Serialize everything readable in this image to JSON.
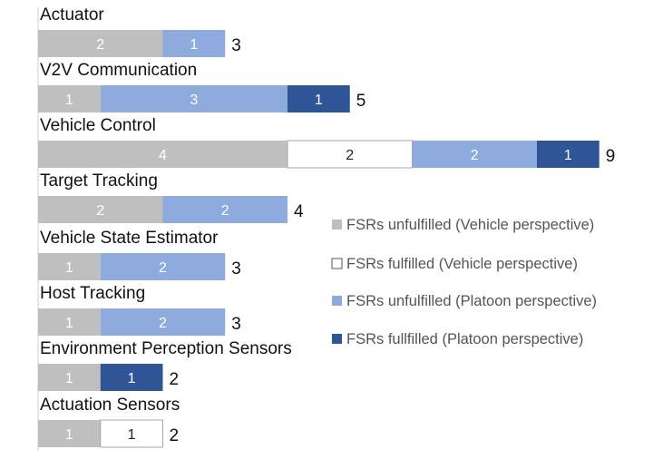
{
  "chart_data": {
    "type": "bar",
    "orientation": "horizontal",
    "stacked": true,
    "categories": [
      "Actuator",
      "V2V Communication",
      "Vehicle Control",
      "Target Tracking",
      "Vehicle State Estimator",
      "Host Tracking",
      "Environment  Perception Sensors",
      "Actuation Sensors"
    ],
    "series": [
      {
        "name": "FSRs unfulfilled (Vehicle perspective)",
        "color": "#bfbfbf",
        "label_color": "#ffffff",
        "values": [
          2,
          1,
          4,
          2,
          1,
          1,
          1,
          1
        ]
      },
      {
        "name": "FSRs  fulfilled (Vehicle perspective)",
        "color": "#ffffff",
        "label_color": "#222222",
        "values": [
          0,
          0,
          2,
          0,
          0,
          0,
          0,
          1
        ]
      },
      {
        "name": "FSRs unfulfilled (Platoon perspective)",
        "color": "#8faadc",
        "label_color": "#ffffff",
        "values": [
          1,
          3,
          2,
          2,
          2,
          2,
          0,
          0
        ]
      },
      {
        "name": "FSRs fullfilled (Platoon perspective)",
        "color": "#2f5597",
        "label_color": "#ffffff",
        "values": [
          0,
          1,
          1,
          0,
          0,
          0,
          1,
          0
        ]
      }
    ],
    "totals": [
      3,
      5,
      9,
      4,
      3,
      3,
      2,
      2
    ],
    "legend_position": "right",
    "grid": false
  }
}
